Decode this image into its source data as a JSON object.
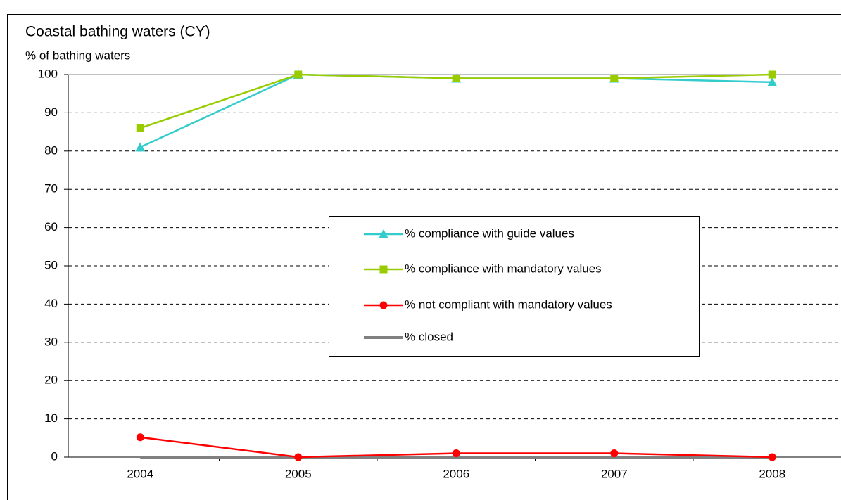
{
  "chart_data": {
    "type": "line",
    "title": "Coastal bathing waters (CY)",
    "y_label": "% of bathing waters",
    "categories": [
      "2004",
      "2005",
      "2006",
      "2007",
      "2008"
    ],
    "series": [
      {
        "name": "% compliance with guide values",
        "color": "#33cccc",
        "marker": "triangle",
        "values": [
          81,
          100,
          99,
          99,
          98
        ]
      },
      {
        "name": "% compliance with mandatory values",
        "color": "#99cc00",
        "marker": "square",
        "values": [
          86,
          100,
          99,
          99,
          100
        ]
      },
      {
        "name": "% not compliant with mandatory values",
        "color": "#ff0000",
        "marker": "circle",
        "values": [
          5.2,
          0,
          1,
          1,
          0
        ]
      },
      {
        "name": "% closed",
        "color": "#808080",
        "marker": "none",
        "values": [
          0,
          0,
          0,
          0,
          0
        ]
      }
    ],
    "ylim": [
      0,
      100
    ],
    "yticks": [
      0,
      10,
      20,
      30,
      40,
      50,
      60,
      70,
      80,
      90,
      100
    ],
    "grid": true
  }
}
